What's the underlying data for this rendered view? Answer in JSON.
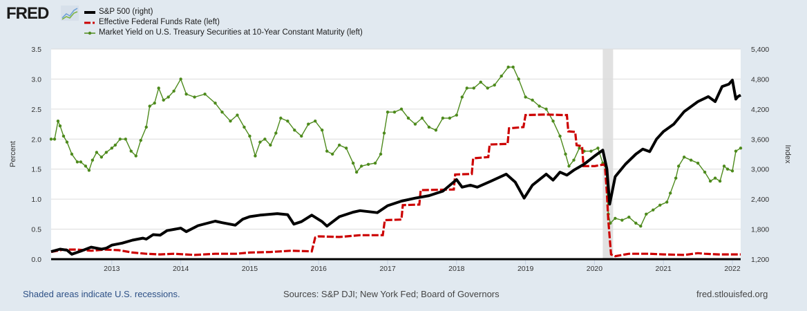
{
  "header": {
    "logo_text": "FRED",
    "logo_icon": "chart-line-icon"
  },
  "legend": [
    {
      "label": "S&P 500 (right)",
      "color": "#000000",
      "style": "solid-thick"
    },
    {
      "label": "Effective Federal Funds Rate (left)",
      "color": "#cc0000",
      "style": "dashed-marker"
    },
    {
      "label": "Market Yield on U.S. Treasury Securities at 10-Year Constant Maturity (left)",
      "color": "#4d8a1c",
      "style": "line-dot-marker"
    }
  ],
  "footer": {
    "recession_note": "Shaded areas indicate U.S. recessions.",
    "sources": "Sources: S&P DJI; New York Fed; Board of Governors",
    "site": "fred.stlouisfed.org"
  },
  "chart_data": {
    "type": "line",
    "title": "",
    "xlabel": "",
    "ylabel_left": "Percent",
    "ylabel_right": "Index",
    "xlim": [
      2012.12,
      2022.12
    ],
    "ylim_left": [
      0,
      3.5
    ],
    "ylim_right": [
      1200,
      5400
    ],
    "grid": true,
    "legend_position": "top-left",
    "x_ticks": [
      "2013",
      "2014",
      "2015",
      "2016",
      "2017",
      "2018",
      "2019",
      "2020",
      "2021",
      "2022"
    ],
    "x_tick_values": [
      2013,
      2014,
      2015,
      2016,
      2017,
      2018,
      2019,
      2020,
      2021,
      2022
    ],
    "y_ticks_left": [
      "0.0",
      "0.5",
      "1.0",
      "1.5",
      "2.0",
      "2.5",
      "3.0",
      "3.5"
    ],
    "y_tick_values_left": [
      0,
      0.5,
      1.0,
      1.5,
      2.0,
      2.5,
      3.0,
      3.5
    ],
    "y_ticks_right": [
      "1,200",
      "1,800",
      "2,400",
      "3,000",
      "3,600",
      "4,200",
      "4,800",
      "5,400"
    ],
    "y_tick_values_right": [
      1200,
      1800,
      2400,
      3000,
      3600,
      4200,
      4800,
      5400
    ],
    "recessions": [
      [
        2020.12,
        2020.27
      ]
    ],
    "series": [
      {
        "name": "S&P 500 (right)",
        "axis": "right",
        "color": "#000000",
        "x": [
          2012.12,
          2012.25,
          2012.35,
          2012.42,
          2012.55,
          2012.7,
          2012.85,
          2012.92,
          2013.0,
          2013.15,
          2013.3,
          2013.45,
          2013.5,
          2013.6,
          2013.7,
          2013.8,
          2014.0,
          2014.08,
          2014.25,
          2014.5,
          2014.6,
          2014.79,
          2014.9,
          2015.0,
          2015.15,
          2015.4,
          2015.55,
          2015.64,
          2015.75,
          2015.9,
          2016.05,
          2016.12,
          2016.3,
          2016.5,
          2016.6,
          2016.85,
          2017.0,
          2017.2,
          2017.4,
          2017.6,
          2017.8,
          2018.0,
          2018.08,
          2018.2,
          2018.3,
          2018.5,
          2018.72,
          2018.85,
          2018.98,
          2019.1,
          2019.3,
          2019.4,
          2019.5,
          2019.6,
          2019.7,
          2019.85,
          2020.0,
          2020.12,
          2020.18,
          2020.22,
          2020.3,
          2020.45,
          2020.6,
          2020.7,
          2020.8,
          2020.9,
          2021.0,
          2021.15,
          2021.3,
          2021.5,
          2021.65,
          2021.75,
          2021.85,
          2021.95,
          2022.0,
          2022.05,
          2022.08,
          2022.12
        ],
        "values": [
          1350,
          1400,
          1380,
          1300,
          1360,
          1440,
          1400,
          1420,
          1480,
          1520,
          1580,
          1620,
          1600,
          1690,
          1680,
          1770,
          1820,
          1750,
          1870,
          1960,
          1930,
          1880,
          2000,
          2050,
          2080,
          2110,
          2090,
          1900,
          1950,
          2080,
          1950,
          1860,
          2050,
          2140,
          2170,
          2130,
          2270,
          2360,
          2420,
          2470,
          2560,
          2790,
          2640,
          2680,
          2640,
          2760,
          2900,
          2740,
          2420,
          2680,
          2900,
          2780,
          2940,
          2880,
          2980,
          3100,
          3260,
          3380,
          3000,
          2300,
          2850,
          3100,
          3300,
          3400,
          3350,
          3600,
          3750,
          3900,
          4150,
          4350,
          4450,
          4350,
          4650,
          4700,
          4780,
          4400,
          4450,
          4480
        ]
      },
      {
        "name": "Effective Federal Funds Rate (left)",
        "axis": "left",
        "color": "#cc0000",
        "x": [
          2012.12,
          2012.3,
          2012.5,
          2012.7,
          2012.9,
          2013.1,
          2013.3,
          2013.5,
          2013.7,
          2013.9,
          2014.2,
          2014.5,
          2014.8,
          2015.0,
          2015.3,
          2015.6,
          2015.9,
          2015.95,
          2016.0,
          2016.3,
          2016.6,
          2016.93,
          2016.96,
          2017.2,
          2017.22,
          2017.46,
          2017.48,
          2017.96,
          2017.98,
          2018.22,
          2018.24,
          2018.46,
          2018.48,
          2018.74,
          2018.76,
          2018.97,
          2019.0,
          2019.3,
          2019.55,
          2019.6,
          2019.62,
          2019.72,
          2019.74,
          2019.82,
          2019.84,
          2020.0,
          2020.15,
          2020.18,
          2020.2,
          2020.24,
          2020.3,
          2020.5,
          2020.8,
          2021.0,
          2021.3,
          2021.5,
          2021.6,
          2021.8,
          2022.12
        ],
        "values": [
          0.12,
          0.16,
          0.16,
          0.14,
          0.16,
          0.15,
          0.11,
          0.09,
          0.08,
          0.09,
          0.07,
          0.09,
          0.09,
          0.11,
          0.12,
          0.14,
          0.13,
          0.36,
          0.38,
          0.37,
          0.4,
          0.4,
          0.65,
          0.66,
          0.9,
          0.91,
          1.15,
          1.16,
          1.41,
          1.42,
          1.68,
          1.7,
          1.91,
          1.92,
          2.18,
          2.2,
          2.4,
          2.41,
          2.4,
          2.4,
          2.13,
          2.12,
          1.9,
          1.88,
          1.55,
          1.55,
          1.58,
          1.1,
          0.65,
          0.08,
          0.05,
          0.09,
          0.09,
          0.08,
          0.07,
          0.1,
          0.09,
          0.08,
          0.08
        ]
      },
      {
        "name": "Market Yield on U.S. Treasury Securities at 10-Year Constant Maturity (left)",
        "axis": "left",
        "color": "#4d8a1c",
        "x": [
          2012.12,
          2012.17,
          2012.22,
          2012.25,
          2012.3,
          2012.35,
          2012.42,
          2012.5,
          2012.55,
          2012.62,
          2012.67,
          2012.72,
          2012.78,
          2012.85,
          2012.92,
          2013.0,
          2013.05,
          2013.12,
          2013.2,
          2013.28,
          2013.35,
          2013.42,
          2013.5,
          2013.55,
          2013.62,
          2013.68,
          2013.75,
          2013.82,
          2013.9,
          2014.0,
          2014.08,
          2014.2,
          2014.35,
          2014.5,
          2014.6,
          2014.72,
          2014.82,
          2014.92,
          2015.0,
          2015.08,
          2015.15,
          2015.22,
          2015.3,
          2015.38,
          2015.45,
          2015.55,
          2015.65,
          2015.75,
          2015.85,
          2015.95,
          2016.05,
          2016.12,
          2016.2,
          2016.3,
          2016.4,
          2016.5,
          2016.55,
          2016.62,
          2016.72,
          2016.82,
          2016.9,
          2016.95,
          2017.0,
          2017.1,
          2017.2,
          2017.3,
          2017.4,
          2017.5,
          2017.6,
          2017.7,
          2017.8,
          2017.9,
          2018.0,
          2018.08,
          2018.15,
          2018.25,
          2018.35,
          2018.45,
          2018.55,
          2018.65,
          2018.75,
          2018.82,
          2018.9,
          2019.0,
          2019.1,
          2019.2,
          2019.3,
          2019.4,
          2019.5,
          2019.58,
          2019.63,
          2019.7,
          2019.78,
          2019.85,
          2019.95,
          2020.05,
          2020.12,
          2020.17,
          2020.2,
          2020.23,
          2020.3,
          2020.4,
          2020.5,
          2020.6,
          2020.67,
          2020.75,
          2020.85,
          2020.95,
          2021.05,
          2021.1,
          2021.18,
          2021.22,
          2021.3,
          2021.4,
          2021.5,
          2021.6,
          2021.68,
          2021.75,
          2021.82,
          2021.88,
          2021.93,
          2022.0,
          2022.05,
          2022.12
        ],
        "values": [
          2.0,
          2.0,
          2.3,
          2.22,
          2.05,
          1.95,
          1.75,
          1.62,
          1.62,
          1.55,
          1.48,
          1.65,
          1.78,
          1.7,
          1.78,
          1.85,
          1.9,
          2.0,
          2.0,
          1.8,
          1.72,
          1.98,
          2.2,
          2.55,
          2.6,
          2.85,
          2.65,
          2.7,
          2.8,
          3.0,
          2.75,
          2.7,
          2.75,
          2.6,
          2.45,
          2.3,
          2.4,
          2.2,
          2.05,
          1.72,
          1.95,
          2.0,
          1.9,
          2.1,
          2.35,
          2.3,
          2.15,
          2.05,
          2.25,
          2.3,
          2.15,
          1.8,
          1.75,
          1.9,
          1.85,
          1.6,
          1.45,
          1.55,
          1.58,
          1.6,
          1.75,
          2.1,
          2.45,
          2.45,
          2.5,
          2.35,
          2.25,
          2.35,
          2.2,
          2.15,
          2.35,
          2.35,
          2.4,
          2.7,
          2.85,
          2.85,
          2.95,
          2.85,
          2.9,
          3.05,
          3.2,
          3.2,
          3.0,
          2.7,
          2.65,
          2.55,
          2.5,
          2.3,
          2.05,
          1.75,
          1.55,
          1.65,
          1.85,
          1.8,
          1.8,
          1.85,
          1.6,
          1.5,
          0.75,
          0.6,
          0.68,
          0.65,
          0.7,
          0.6,
          0.55,
          0.75,
          0.82,
          0.9,
          0.95,
          1.1,
          1.35,
          1.55,
          1.7,
          1.65,
          1.6,
          1.45,
          1.3,
          1.35,
          1.3,
          1.55,
          1.5,
          1.47,
          1.8,
          1.85
        ]
      }
    ]
  }
}
